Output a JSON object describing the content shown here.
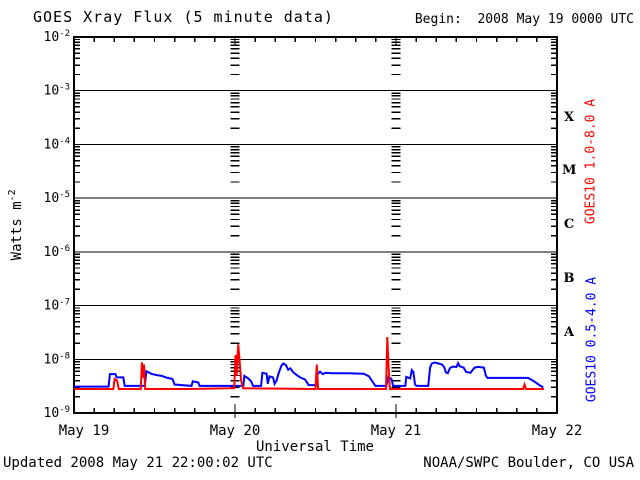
{
  "header": {
    "title": "GOES Xray Flux (5 minute data)",
    "begin_label": "Begin:  2008 May 19 0000 UTC"
  },
  "footer": {
    "updated": "Updated 2008 May 21 22:00:02 UTC",
    "source": "NOAA/SWPC Boulder, CO USA"
  },
  "chart_data": {
    "type": "line",
    "title": "GOES Xray Flux (5 minute data)",
    "xlabel": "Universal Time",
    "ylabel_base": "Watts m",
    "ylabel_exp": "-2",
    "x_ticks": [
      "May 19",
      "May 20",
      "May 21",
      "May 22"
    ],
    "x_minor_tick_hours": 3,
    "x_range_days": [
      0,
      3
    ],
    "y_exponents": [
      -2,
      -3,
      -4,
      -5,
      -6,
      -7,
      -8,
      -9
    ],
    "y_range": [
      1e-09,
      0.01
    ],
    "grid_decades": [
      -3,
      -4,
      -5,
      -6,
      -7,
      -8
    ],
    "day_gridlines_days": [
      1,
      2
    ],
    "flare_classes": [
      {
        "label": "X",
        "decade_mid": -3.5
      },
      {
        "label": "M",
        "decade_mid": -4.5
      },
      {
        "label": "C",
        "decade_mid": -5.5
      },
      {
        "label": "B",
        "decade_mid": -6.5
      },
      {
        "label": "A",
        "decade_mid": -7.5
      }
    ],
    "series": [
      {
        "name": "GOES10 1.0-8.0 A",
        "color": "#ff0000",
        "points": [
          [
            0.0,
            2.8e-09
          ],
          [
            0.245,
            2.8e-09
          ],
          [
            0.252,
            4.3e-09
          ],
          [
            0.268,
            4e-09
          ],
          [
            0.278,
            2.8e-09
          ],
          [
            0.415,
            2.8e-09
          ],
          [
            0.422,
            8.8e-09
          ],
          [
            0.428,
            4.5e-09
          ],
          [
            0.435,
            8e-09
          ],
          [
            0.442,
            2.8e-09
          ],
          [
            0.7,
            2.8e-09
          ],
          [
            0.995,
            2.9e-09
          ],
          [
            1.004,
            1.2e-08
          ],
          [
            1.01,
            5e-09
          ],
          [
            1.02,
            1.9e-08
          ],
          [
            1.028,
            1e-08
          ],
          [
            1.038,
            4e-09
          ],
          [
            1.05,
            2.9e-09
          ],
          [
            1.5,
            2.8e-09
          ],
          [
            1.508,
            8e-09
          ],
          [
            1.516,
            2.8e-09
          ],
          [
            1.938,
            2.8e-09
          ],
          [
            1.946,
            2.6e-08
          ],
          [
            1.954,
            7e-09
          ],
          [
            1.962,
            2.8e-09
          ],
          [
            2.79,
            2.8e-09
          ],
          [
            2.798,
            3.4e-09
          ],
          [
            2.808,
            2.8e-09
          ],
          [
            2.92,
            2.8e-09
          ]
        ]
      },
      {
        "name": "GOES10 0.5-4.0 A",
        "color": "#0000ff",
        "points": [
          [
            0.0,
            3.1e-09
          ],
          [
            0.215,
            3.1e-09
          ],
          [
            0.223,
            5.3e-09
          ],
          [
            0.258,
            5.3e-09
          ],
          [
            0.264,
            4.6e-09
          ],
          [
            0.306,
            4.6e-09
          ],
          [
            0.315,
            3.2e-09
          ],
          [
            0.44,
            3.2e-09
          ],
          [
            0.45,
            6e-09
          ],
          [
            0.478,
            5.4e-09
          ],
          [
            0.51,
            5.1e-09
          ],
          [
            0.545,
            4.9e-09
          ],
          [
            0.58,
            4.5e-09
          ],
          [
            0.612,
            4.3e-09
          ],
          [
            0.625,
            3.4e-09
          ],
          [
            0.73,
            3.2e-09
          ],
          [
            0.738,
            3.9e-09
          ],
          [
            0.772,
            3.7e-09
          ],
          [
            0.78,
            3.2e-09
          ],
          [
            1.052,
            3.2e-09
          ],
          [
            1.058,
            4.9e-09
          ],
          [
            1.082,
            4.4e-09
          ],
          [
            1.1,
            3.9e-09
          ],
          [
            1.112,
            3.2e-09
          ],
          [
            1.162,
            3.2e-09
          ],
          [
            1.17,
            5.6e-09
          ],
          [
            1.196,
            5.4e-09
          ],
          [
            1.204,
            3.5e-09
          ],
          [
            1.214,
            4.8e-09
          ],
          [
            1.236,
            4.6e-09
          ],
          [
            1.246,
            3.5e-09
          ],
          [
            1.258,
            4e-09
          ],
          [
            1.272,
            5.6e-09
          ],
          [
            1.288,
            7.6e-09
          ],
          [
            1.3,
            8.4e-09
          ],
          [
            1.316,
            7.8e-09
          ],
          [
            1.33,
            6.4e-09
          ],
          [
            1.344,
            6.8e-09
          ],
          [
            1.36,
            5.8e-09
          ],
          [
            1.378,
            5.2e-09
          ],
          [
            1.405,
            4.6e-09
          ],
          [
            1.435,
            4.2e-09
          ],
          [
            1.458,
            3.3e-09
          ],
          [
            1.505,
            3.3e-09
          ],
          [
            1.512,
            5.2e-09
          ],
          [
            1.528,
            5.9e-09
          ],
          [
            1.545,
            5.3e-09
          ],
          [
            1.562,
            5.6e-09
          ],
          [
            1.6,
            5.5e-09
          ],
          [
            1.7,
            5.5e-09
          ],
          [
            1.8,
            5.4e-09
          ],
          [
            1.832,
            4.8e-09
          ],
          [
            1.86,
            3.6e-09
          ],
          [
            1.872,
            3.2e-09
          ],
          [
            1.94,
            3.2e-09
          ],
          [
            1.952,
            4.7e-09
          ],
          [
            1.972,
            4.3e-09
          ],
          [
            1.982,
            3.2e-09
          ],
          [
            2.058,
            3.2e-09
          ],
          [
            2.064,
            4.7e-09
          ],
          [
            2.088,
            4.4e-09
          ],
          [
            2.098,
            6.3e-09
          ],
          [
            2.108,
            5.8e-09
          ],
          [
            2.118,
            3.4e-09
          ],
          [
            2.128,
            3.2e-09
          ],
          [
            2.2,
            3.2e-09
          ],
          [
            2.212,
            7e-09
          ],
          [
            2.222,
            8.3e-09
          ],
          [
            2.24,
            8.7e-09
          ],
          [
            2.262,
            8.4e-09
          ],
          [
            2.286,
            8e-09
          ],
          [
            2.3,
            7.1e-09
          ],
          [
            2.31,
            5.7e-09
          ],
          [
            2.322,
            5.5e-09
          ],
          [
            2.336,
            6.9e-09
          ],
          [
            2.352,
            7.3e-09
          ],
          [
            2.376,
            7.2e-09
          ],
          [
            2.386,
            8.5e-09
          ],
          [
            2.396,
            7.4e-09
          ],
          [
            2.42,
            7e-09
          ],
          [
            2.436,
            5.8e-09
          ],
          [
            2.462,
            5.6e-09
          ],
          [
            2.488,
            7e-09
          ],
          [
            2.512,
            7.2e-09
          ],
          [
            2.546,
            7e-09
          ],
          [
            2.558,
            5e-09
          ],
          [
            2.568,
            4.5e-09
          ],
          [
            2.82,
            4.5e-09
          ],
          [
            2.845,
            4.1e-09
          ],
          [
            2.868,
            3.7e-09
          ],
          [
            2.89,
            3.3e-09
          ],
          [
            2.915,
            3e-09
          ]
        ]
      }
    ]
  }
}
